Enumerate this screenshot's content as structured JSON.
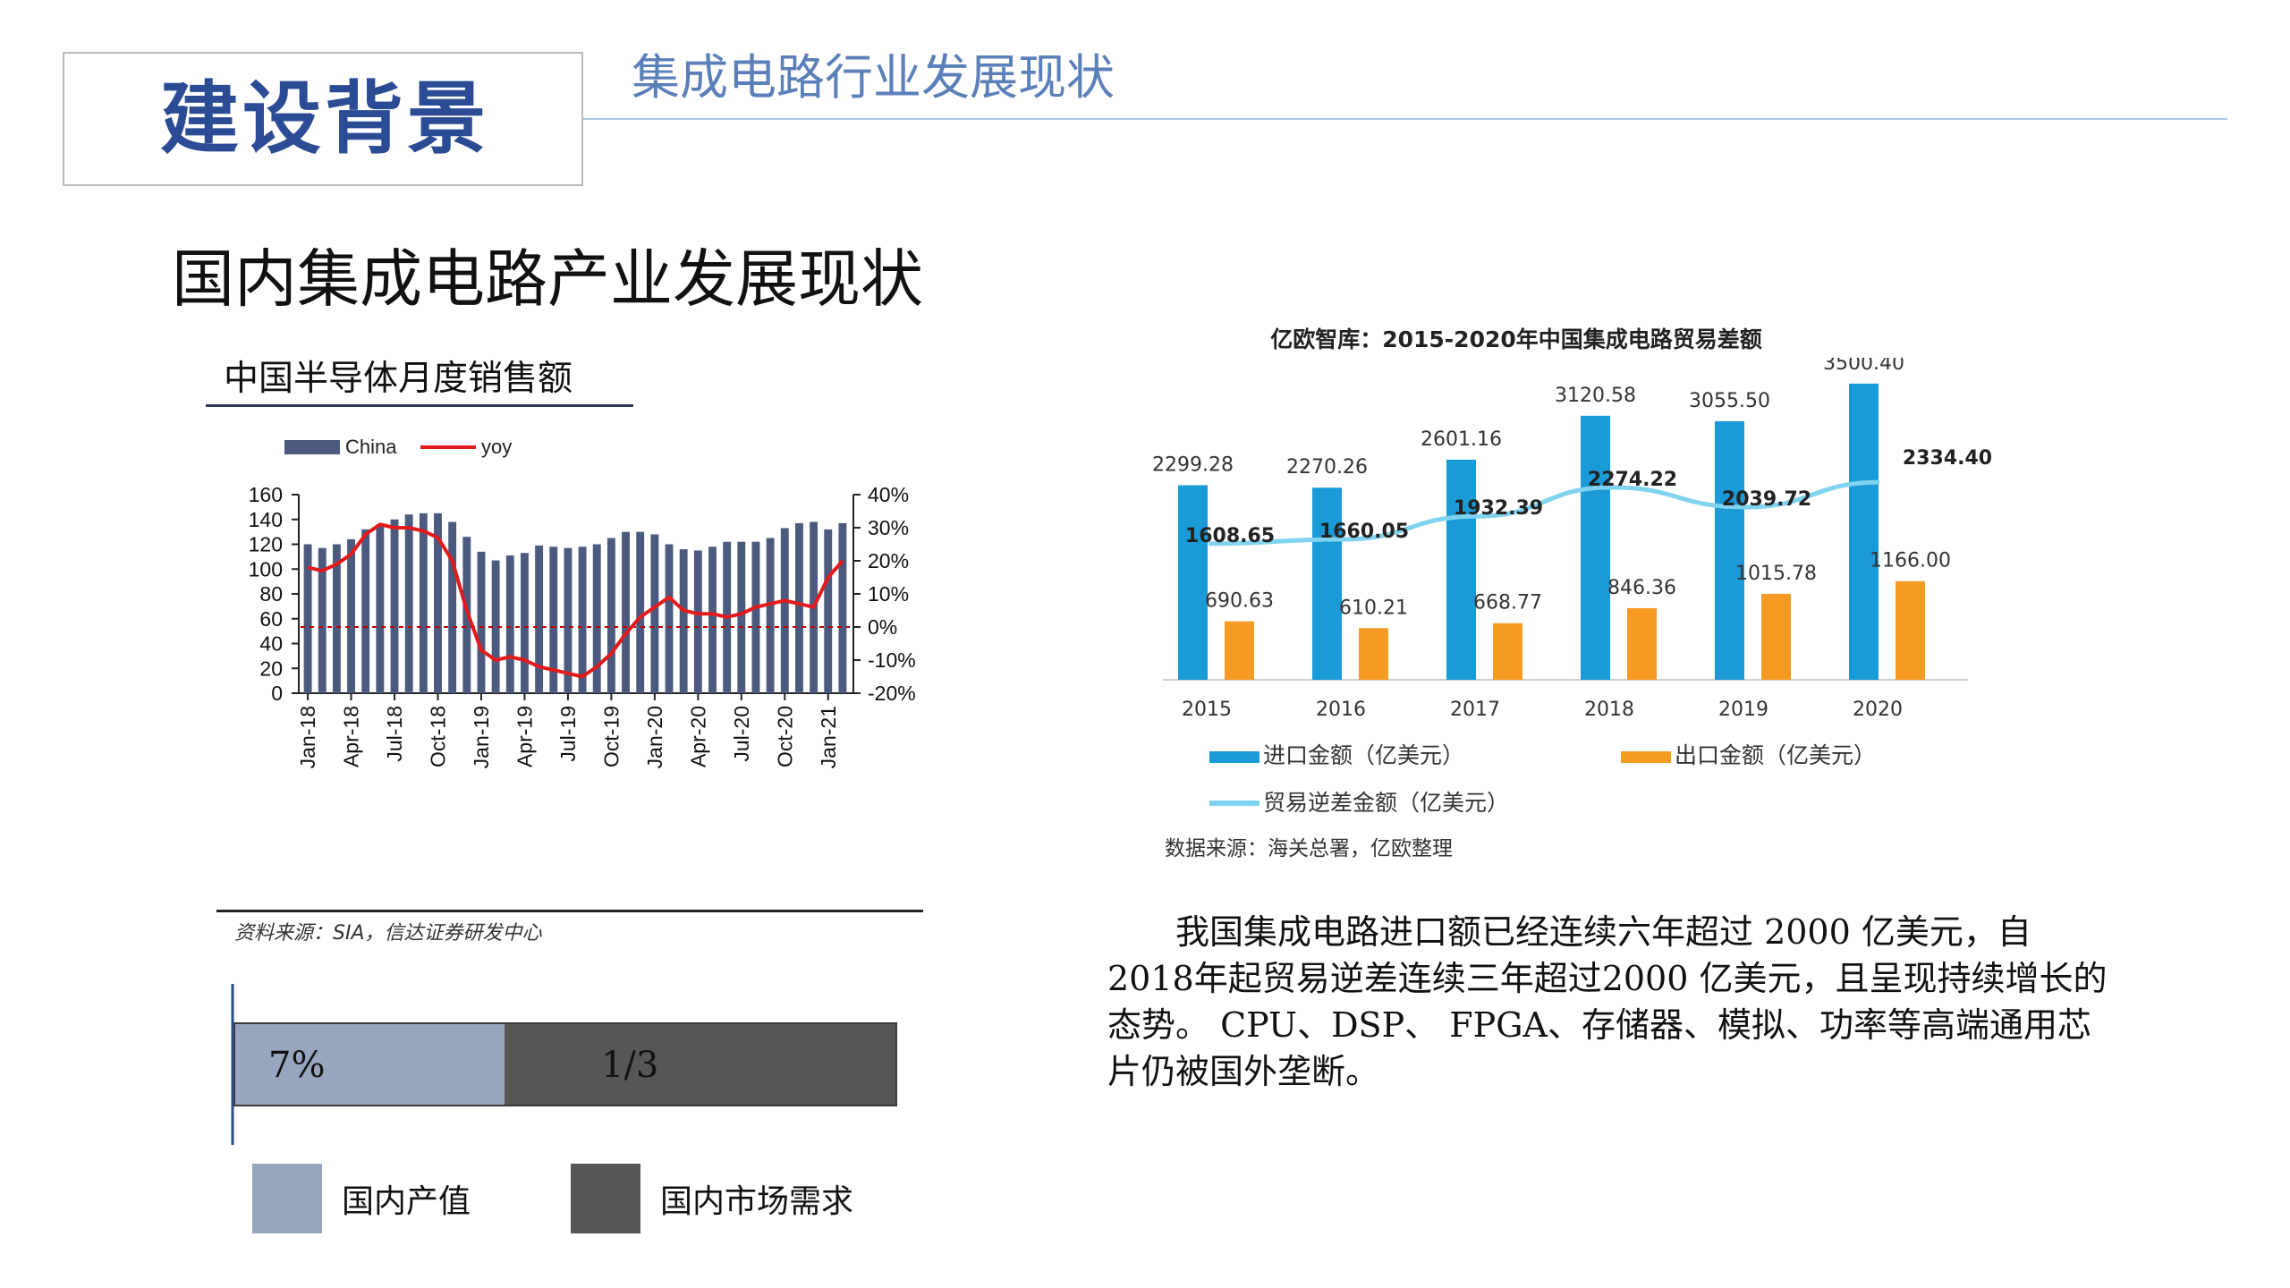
{
  "header": {
    "title": "建设背景",
    "subtitle": "集成电路行业发展现状"
  },
  "section_heading": "国内集成电路产业发展现状",
  "left_chart_heading": "中国半导体月度销售额",
  "left_chart_source": "资料来源：SIA，信达证券研发中心",
  "right_chart_title": "亿欧智库：2015-2020年中国集成电路贸易差额",
  "right_chart_source": "数据来源：海关总署，亿欧整理",
  "paragraph": "我国集成电路进口额已经连续六年超过 2000 亿美元，自2018年起贸易逆差连续三年超过2000 亿美元，且呈现持续增长的态势。 CPU、DSP、 FPGA、存储器、模拟、功率等高端通用芯片仍被国外垄断。",
  "colors": {
    "title_blue": "#2b4c95",
    "bar_navy": "#4b5a7e",
    "yoy_red": "#e31a1c",
    "import_blue": "#1a9ad6",
    "export_orange": "#f59a23",
    "deficit_lightblue": "#7fd3ee",
    "domestic_output": "#97a6be",
    "domestic_demand": "#565656"
  },
  "chart_data": [
    {
      "type": "bar",
      "title": "",
      "legend": [
        "China",
        "yoy"
      ],
      "legend_position": "top",
      "x": [
        "Jan-18",
        "Feb-18",
        "Mar-18",
        "Apr-18",
        "May-18",
        "Jun-18",
        "Jul-18",
        "Aug-18",
        "Sep-18",
        "Oct-18",
        "Nov-18",
        "Dec-18",
        "Jan-19",
        "Feb-19",
        "Mar-19",
        "Apr-19",
        "May-19",
        "Jun-19",
        "Jul-19",
        "Aug-19",
        "Sep-19",
        "Oct-19",
        "Nov-19",
        "Dec-19",
        "Jan-20",
        "Feb-20",
        "Mar-20",
        "Apr-20",
        "May-20",
        "Jun-20",
        "Jul-20",
        "Aug-20",
        "Sep-20",
        "Oct-20",
        "Nov-20",
        "Dec-20",
        "Jan-21",
        "Feb-21"
      ],
      "x_tick_labels": [
        "Jan-18",
        "Apr-18",
        "Jul-18",
        "Oct-18",
        "Jan-19",
        "Apr-19",
        "Jul-19",
        "Oct-19",
        "Jan-20",
        "Apr-20",
        "Jul-20",
        "Oct-20",
        "Jan-21"
      ],
      "series": [
        {
          "name": "China",
          "type": "bar",
          "axis": "left",
          "values": [
            120,
            117,
            120,
            124,
            132,
            136,
            140,
            144,
            145,
            145,
            138,
            126,
            114,
            107,
            111,
            113,
            119,
            118,
            117,
            118,
            120,
            125,
            130,
            130,
            128,
            120,
            116,
            115,
            118,
            122,
            122,
            122,
            125,
            133,
            137,
            138,
            132,
            137
          ]
        },
        {
          "name": "yoy",
          "type": "line",
          "axis": "right",
          "values": [
            18,
            17,
            19,
            22,
            28,
            31,
            30,
            30,
            29,
            27,
            20,
            5,
            -7,
            -10,
            -9,
            -10,
            -12,
            -13,
            -14,
            -15,
            -12,
            -8,
            -2,
            3,
            6,
            9,
            5,
            4,
            4,
            3,
            4,
            6,
            7,
            8,
            7,
            6,
            15,
            20
          ]
        }
      ],
      "y_left": {
        "ticks": [
          0,
          20,
          40,
          60,
          80,
          100,
          120,
          140,
          160
        ],
        "range": [
          0,
          160
        ]
      },
      "y_right": {
        "ticks": [
          "40%",
          "30%",
          "20%",
          "10%",
          "0%",
          "-10%",
          "-20%"
        ],
        "range": [
          -20,
          40
        ]
      },
      "reference_line": {
        "axis": "right",
        "value": 0,
        "style": "dashed",
        "color": "#c00000"
      }
    },
    {
      "type": "bar",
      "categories": [
        "2015",
        "2016",
        "2017",
        "2018",
        "2019",
        "2020"
      ],
      "series": [
        {
          "name": "进口金额（亿美元）",
          "type": "bar",
          "values": [
            2299.28,
            2270.26,
            2601.16,
            3120.58,
            3055.5,
            3500.4
          ]
        },
        {
          "name": "出口金额（亿美元）",
          "type": "bar",
          "values": [
            690.63,
            610.21,
            668.77,
            846.36,
            1015.78,
            1166.0
          ]
        },
        {
          "name": "贸易逆差金额（亿美元）",
          "type": "line",
          "values": [
            1608.65,
            1660.05,
            1932.39,
            2274.22,
            2039.72,
            2334.4
          ]
        }
      ],
      "import_labels": [
        "2299.28",
        "2270.26",
        "2601.16",
        "3120.58",
        "3055.50",
        "3500.40"
      ],
      "export_labels": [
        "690.63",
        "610.21",
        "668.77",
        "846.36",
        "1015.78",
        "1166.00"
      ],
      "deficit_labels": [
        "1608.65",
        "1660.05",
        "1932.39",
        "2274.22",
        "2039.72",
        "2334.40"
      ],
      "legend_position": "bottom",
      "ylim": [
        0,
        3700
      ]
    },
    {
      "type": "bar",
      "orientation": "horizontal-stacked",
      "segments": [
        {
          "name": "国内产值",
          "value": 1,
          "label": "7%"
        },
        {
          "name": "国内市场需求",
          "value": 1.45,
          "label": "1/3"
        }
      ],
      "legend": [
        "国内产值",
        "国内市场需求"
      ],
      "legend_position": "bottom"
    }
  ]
}
